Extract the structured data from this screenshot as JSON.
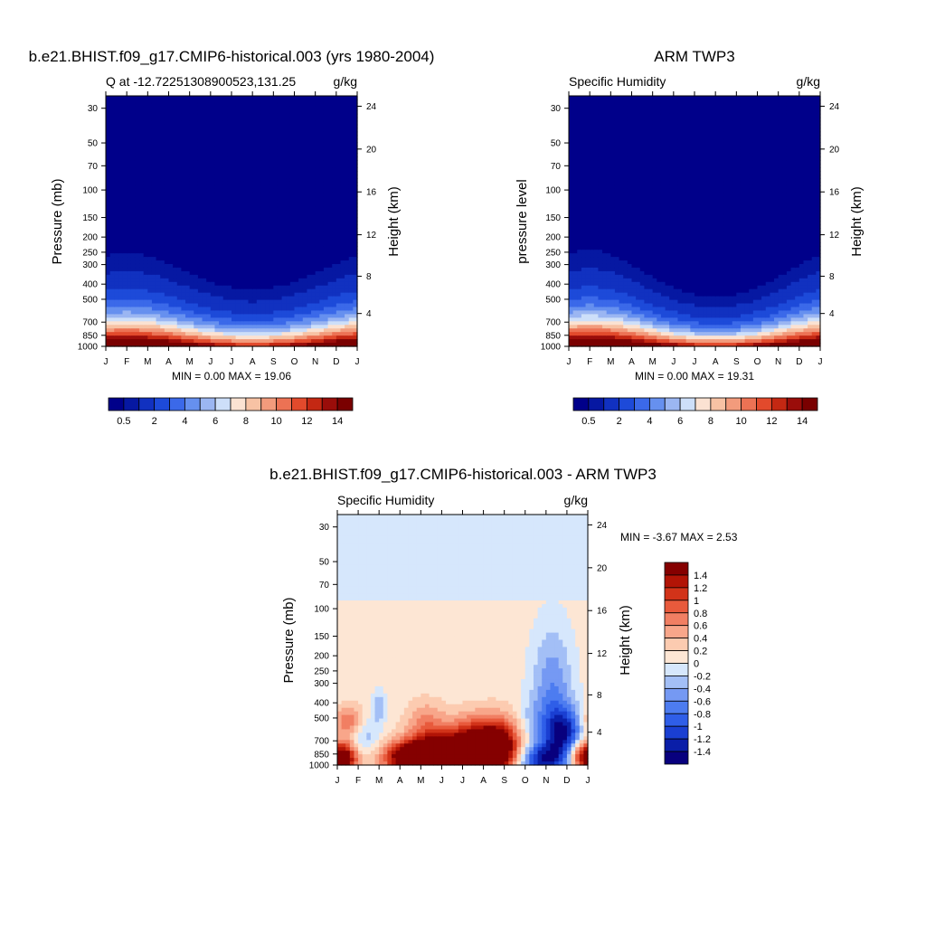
{
  "months": [
    "J",
    "F",
    "M",
    "A",
    "M",
    "J",
    "J",
    "A",
    "S",
    "O",
    "N",
    "D",
    "J"
  ],
  "pressure_ticks": [
    30,
    50,
    70,
    100,
    150,
    200,
    250,
    300,
    400,
    500,
    700,
    850,
    1000
  ],
  "height_ticks": [
    4,
    8,
    12,
    16,
    20,
    24
  ],
  "abs_levels": [
    0.5,
    1,
    2,
    3,
    4,
    5,
    6,
    7,
    8,
    9,
    10,
    11,
    12,
    13,
    14
  ],
  "abs_colors": [
    "#00008a",
    "#0618a2",
    "#1131c0",
    "#1d4ad9",
    "#3b69e9",
    "#6690ef",
    "#9bb6f2",
    "#cddff9",
    "#fbe2d2",
    "#f7c2a4",
    "#f29b7c",
    "#ec7254",
    "#e24a2c",
    "#c42813",
    "#9a0d0a",
    "#7a0000"
  ],
  "abs_cb_labels": [
    "0.5",
    "2",
    "4",
    "6",
    "8",
    "10",
    "12",
    "14"
  ],
  "abs_cb_label_edges": [
    1,
    3,
    5,
    7,
    9,
    11,
    13,
    15
  ],
  "diff_levels": [
    -1.4,
    -1.2,
    -1,
    -0.8,
    -0.6,
    -0.4,
    -0.2,
    0,
    0.2,
    0.4,
    0.6,
    0.8,
    1,
    1.2,
    1.4
  ],
  "diff_colors": [
    "#08007e",
    "#0a1ea8",
    "#1a3fd2",
    "#2f5ee8",
    "#4d7cf0",
    "#7599f3",
    "#a3bff6",
    "#d6e7fc",
    "#fde6d4",
    "#fccbb0",
    "#f8a68a",
    "#f17f63",
    "#e85a3c",
    "#d23319",
    "#b21406",
    "#850000"
  ],
  "diff_cb_labels": [
    "1.4",
    "1.2",
    "1",
    "0.8",
    "0.6",
    "0.4",
    "0.2",
    "0",
    "-0.2",
    "-0.4",
    "-0.6",
    "-0.8",
    "-1",
    "-1.2",
    "-1.4"
  ],
  "chart_data": [
    {
      "type": "heatmap",
      "title": "b.e21.BHIST.f09_g17.CMIP6-historical.003 (yrs 1980-2004)",
      "subtitle_left": "Q at -12.72251308900523,131.25",
      "units": "g/kg",
      "ylabel": "Pressure (mb)",
      "ylabel_right": "Height (km)",
      "xlabel": "",
      "y_scale": "log",
      "ylim": [
        1000,
        25
      ],
      "min": "0.00",
      "max": "19.06",
      "minmax_text": "MIN =   0.00 MAX =   19.06",
      "fields": {
        "surface_q_dry": 13,
        "surface_q_wet": 19,
        "moist_top_dry_mb": 300,
        "moist_top_wet_mb": 440
      }
    },
    {
      "type": "heatmap",
      "title": "ARM TWP3",
      "subtitle_left": "Specific Humidity",
      "units": "g/kg",
      "ylabel": "pressure level",
      "ylabel_right": "Height (km)",
      "xlabel": "",
      "y_scale": "log",
      "ylim": [
        1000,
        25
      ],
      "min": "0.00",
      "max": "19.31",
      "minmax_text": "MIN =   0.00 MAX =   19.31",
      "fields": {
        "surface_q_dry": 13,
        "surface_q_wet": 19.3,
        "moist_top_dry_mb": 290,
        "moist_top_wet_mb": 490
      }
    },
    {
      "type": "heatmap",
      "title": "b.e21.BHIST.f09_g17.CMIP6-historical.003 - ARM TWP3",
      "subtitle_left": "Specific Humidity",
      "units": "g/kg",
      "ylabel": "Pressure (mb)",
      "ylabel_right": "Height (km)",
      "xlabel": "",
      "y_scale": "log",
      "ylim": [
        1000,
        25
      ],
      "min": "-3.67",
      "max": "2.53",
      "minmax_text": "MIN =  -3.67 MAX =   2.53",
      "fields": {
        "stratosphere_value": -0.1,
        "troposphere_value": 0.1,
        "blobs": [
          {
            "month": 5.6,
            "p": 900,
            "dm": 1.9,
            "dlp": 0.09,
            "v": 2.5
          },
          {
            "month": 3.8,
            "p": 890,
            "dm": 0.8,
            "dlp": 0.06,
            "v": 1.4
          },
          {
            "month": 7.6,
            "p": 720,
            "dm": 0.9,
            "dlp": 0.12,
            "v": 1.2
          },
          {
            "month": 6.2,
            "p": 640,
            "dm": 1.2,
            "dlp": 0.1,
            "v": 0.6
          },
          {
            "month": 4.2,
            "p": 540,
            "dm": 0.6,
            "dlp": 0.1,
            "v": 0.5
          },
          {
            "month": 0.5,
            "p": 540,
            "dm": 0.6,
            "dlp": 0.08,
            "v": 0.9
          },
          {
            "month": 0.3,
            "p": 900,
            "dm": 0.5,
            "dlp": 0.07,
            "v": 1.5
          },
          {
            "month": 10.3,
            "p": 370,
            "dm": 0.7,
            "dlp": 0.32,
            "v": -0.7
          },
          {
            "month": 10.9,
            "p": 640,
            "dm": 0.7,
            "dlp": 0.12,
            "v": -1.3
          },
          {
            "month": 9.6,
            "p": 930,
            "dm": 0.9,
            "dlp": 0.07,
            "v": -1.4
          },
          {
            "month": 1.2,
            "p": 650,
            "dm": 0.6,
            "dlp": 0.1,
            "v": -0.6
          },
          {
            "month": 2.0,
            "p": 420,
            "dm": 0.2,
            "dlp": 0.07,
            "v": -0.5
          },
          {
            "month": 9.2,
            "p": 560,
            "dm": 0.5,
            "dlp": 0.12,
            "v": -0.3
          },
          {
            "month": 11.6,
            "p": 860,
            "dm": 0.5,
            "dlp": 0.07,
            "v": 1.0
          }
        ]
      }
    }
  ]
}
